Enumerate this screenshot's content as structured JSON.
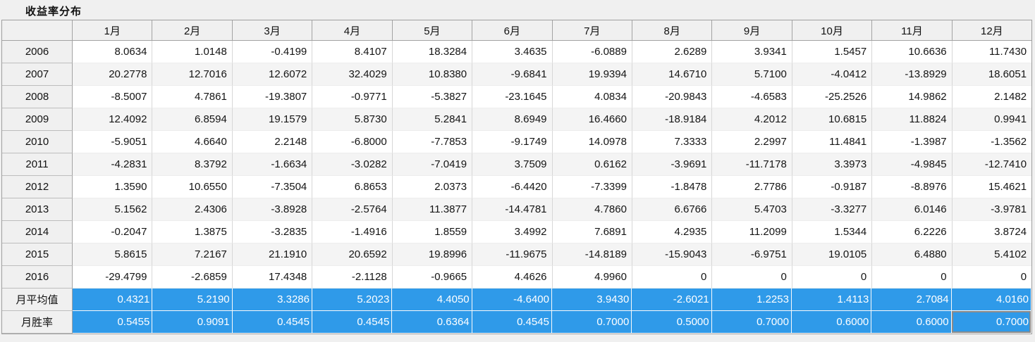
{
  "title": "收益率分布",
  "colors": {
    "summary_row_bg": "#2F9AE9",
    "summary_row_text": "#FFFFFF",
    "selected_cell_border": "#8A8A8A"
  },
  "table": {
    "corner_label": "",
    "months": [
      "1月",
      "2月",
      "3月",
      "4月",
      "5月",
      "6月",
      "7月",
      "8月",
      "9月",
      "10月",
      "11月",
      "12月"
    ],
    "rows": [
      {
        "label": "2006",
        "values": [
          "8.0634",
          "1.0148",
          "-0.4199",
          "8.4107",
          "18.3284",
          "3.4635",
          "-6.0889",
          "2.6289",
          "3.9341",
          "1.5457",
          "10.6636",
          "11.7430"
        ]
      },
      {
        "label": "2007",
        "values": [
          "20.2778",
          "12.7016",
          "12.6072",
          "32.4029",
          "10.8380",
          "-9.6841",
          "19.9394",
          "14.6710",
          "5.7100",
          "-4.0412",
          "-13.8929",
          "18.6051"
        ]
      },
      {
        "label": "2008",
        "values": [
          "-8.5007",
          "4.7861",
          "-19.3807",
          "-0.9771",
          "-5.3827",
          "-23.1645",
          "4.0834",
          "-20.9843",
          "-4.6583",
          "-25.2526",
          "14.9862",
          "2.1482"
        ]
      },
      {
        "label": "2009",
        "values": [
          "12.4092",
          "6.8594",
          "19.1579",
          "5.8730",
          "5.2841",
          "8.6949",
          "16.4660",
          "-18.9184",
          "4.2012",
          "10.6815",
          "11.8824",
          "0.9941"
        ]
      },
      {
        "label": "2010",
        "values": [
          "-5.9051",
          "4.6640",
          "2.2148",
          "-6.8000",
          "-7.7853",
          "-9.1749",
          "14.0978",
          "7.3333",
          "2.2997",
          "11.4841",
          "-1.3987",
          "-1.3562"
        ]
      },
      {
        "label": "2011",
        "values": [
          "-4.2831",
          "8.3792",
          "-1.6634",
          "-3.0282",
          "-7.0419",
          "3.7509",
          "0.6162",
          "-3.9691",
          "-11.7178",
          "3.3973",
          "-4.9845",
          "-12.7410"
        ]
      },
      {
        "label": "2012",
        "values": [
          "1.3590",
          "10.6550",
          "-7.3504",
          "6.8653",
          "2.0373",
          "-6.4420",
          "-7.3399",
          "-1.8478",
          "2.7786",
          "-0.9187",
          "-8.8976",
          "15.4621"
        ]
      },
      {
        "label": "2013",
        "values": [
          "5.1562",
          "2.4306",
          "-3.8928",
          "-2.5764",
          "11.3877",
          "-14.4781",
          "4.7860",
          "6.6766",
          "5.4703",
          "-3.3277",
          "6.0146",
          "-3.9781"
        ]
      },
      {
        "label": "2014",
        "values": [
          "-0.2047",
          "1.3875",
          "-3.2835",
          "-1.4916",
          "1.8559",
          "3.4992",
          "7.6891",
          "4.2935",
          "11.2099",
          "1.5344",
          "6.2226",
          "3.8724"
        ]
      },
      {
        "label": "2015",
        "values": [
          "5.8615",
          "7.2167",
          "21.1910",
          "20.6592",
          "19.8996",
          "-11.9675",
          "-14.8189",
          "-15.9043",
          "-6.9751",
          "19.0105",
          "6.4880",
          "5.4102"
        ]
      },
      {
        "label": "2016",
        "values": [
          "-29.4799",
          "-2.6859",
          "17.4348",
          "-2.1128",
          "-0.9665",
          "4.4626",
          "4.9960",
          "0",
          "0",
          "0",
          "0",
          "0"
        ]
      }
    ],
    "summary_rows": [
      {
        "label": "月平均值",
        "values": [
          "0.4321",
          "5.2190",
          "3.3286",
          "5.2023",
          "4.4050",
          "-4.6400",
          "3.9430",
          "-2.6021",
          "1.2253",
          "1.4113",
          "2.7084",
          "4.0160"
        ]
      },
      {
        "label": "月胜率",
        "values": [
          "0.5455",
          "0.9091",
          "0.4545",
          "0.4545",
          "0.6364",
          "0.4545",
          "0.7000",
          "0.5000",
          "0.7000",
          "0.6000",
          "0.6000",
          "0.7000"
        ]
      }
    ],
    "selection": {
      "summary_row_index": 1,
      "month_index": 11
    }
  }
}
